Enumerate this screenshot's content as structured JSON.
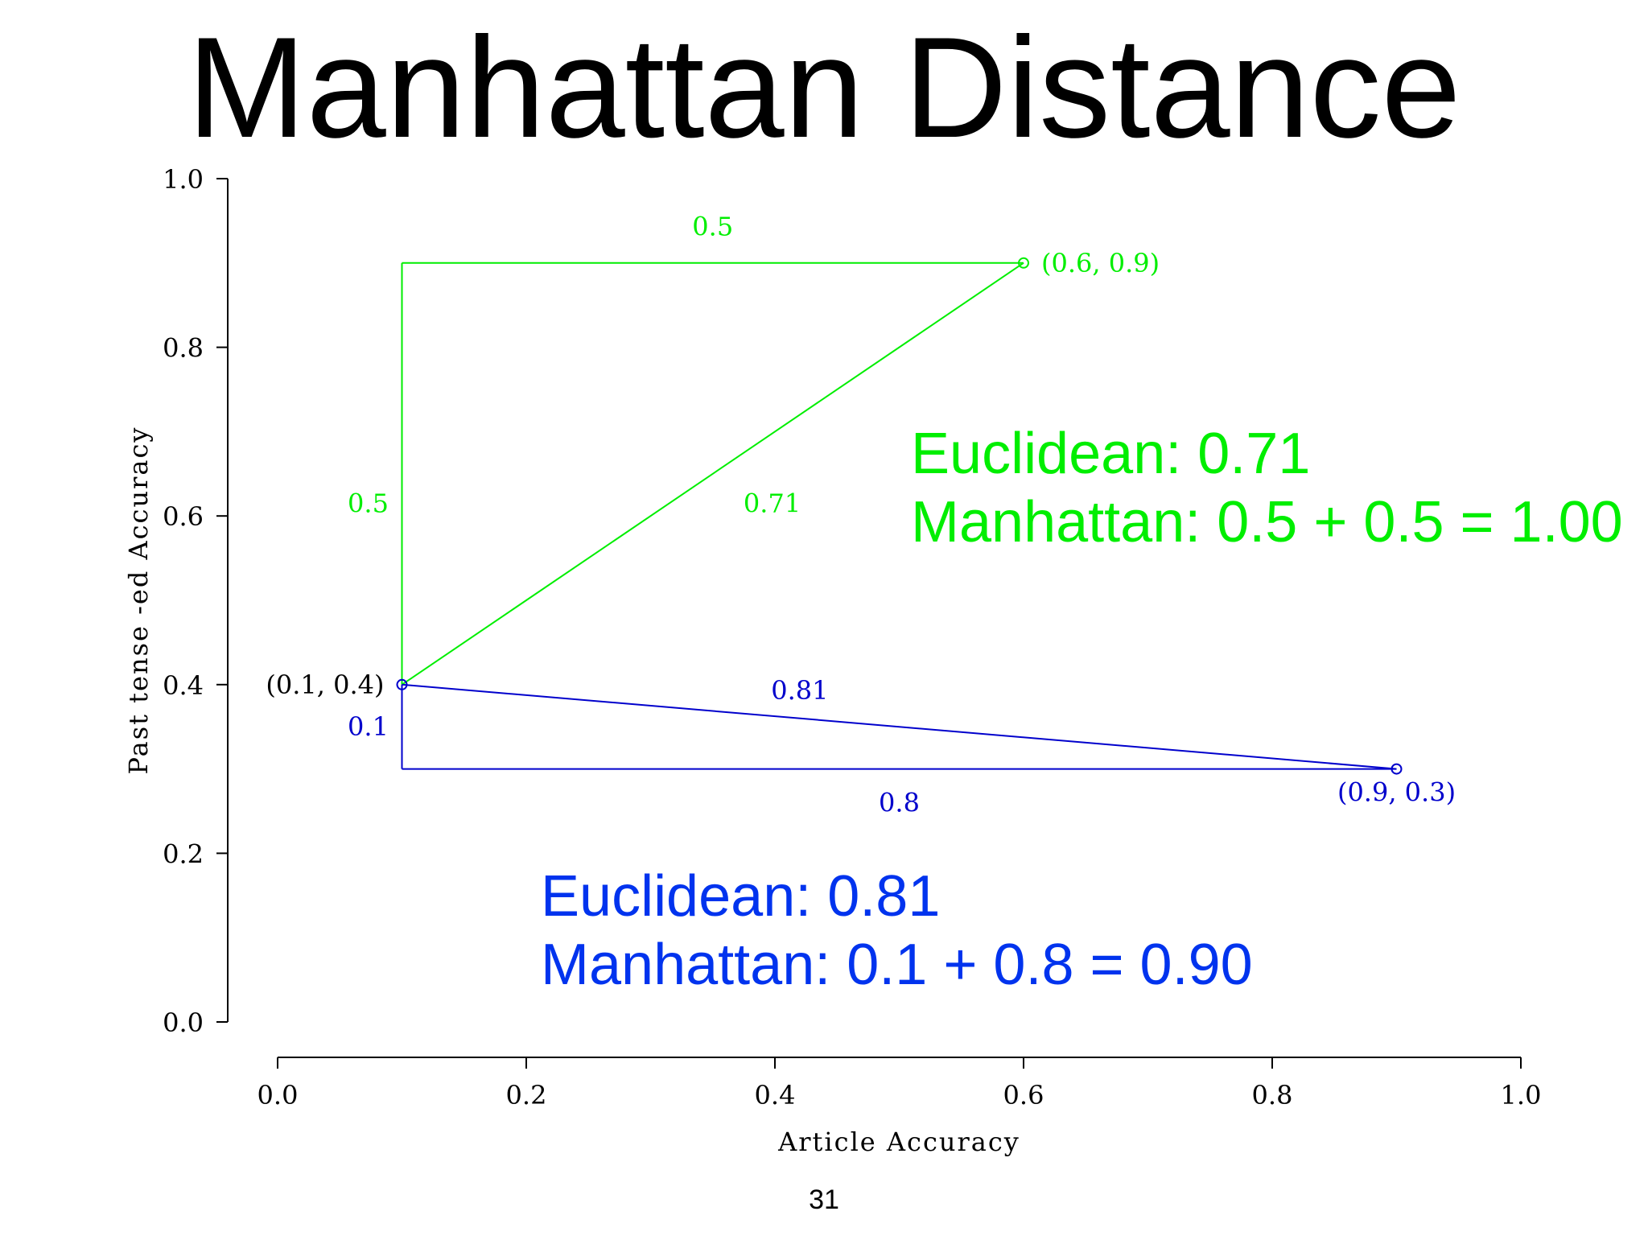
{
  "slide": {
    "title": "Manhattan Distance",
    "page_number": "31",
    "notes": {
      "green": {
        "euclidean": "Euclidean: 0.71",
        "manhattan": "Manhattan: 0.5 + 0.5 = 1.00",
        "color": "#00ee00"
      },
      "blue": {
        "euclidean": "Euclidean: 0.81",
        "manhattan": "Manhattan: 0.1 + 0.8 = 0.90",
        "color": "#0033ee"
      }
    }
  },
  "chart_data": {
    "type": "scatter",
    "xlabel": "Article Accuracy",
    "ylabel": "Past tense -ed Accuracy",
    "xlim": [
      0,
      1
    ],
    "ylim": [
      0,
      1
    ],
    "xticks": [
      "0.0",
      "0.2",
      "0.4",
      "0.6",
      "0.8",
      "1.0"
    ],
    "yticks": [
      "0.0",
      "0.2",
      "0.4",
      "0.6",
      "0.8",
      "1.0"
    ],
    "grid": false,
    "points": [
      {
        "x": 0.1,
        "y": 0.4,
        "label": "(0.1, 0.4)",
        "color": "#000000"
      },
      {
        "x": 0.6,
        "y": 0.9,
        "label": "(0.6, 0.9)",
        "color": "#00ee00"
      },
      {
        "x": 0.9,
        "y": 0.3,
        "label": "(0.9, 0.3)",
        "color": "#0000cc"
      }
    ],
    "segments": [
      {
        "from": [
          0.1,
          0.4
        ],
        "to": [
          0.1,
          0.9
        ],
        "label": "0.5",
        "color": "#00ee00"
      },
      {
        "from": [
          0.1,
          0.9
        ],
        "to": [
          0.6,
          0.9
        ],
        "label": "0.5",
        "color": "#00ee00"
      },
      {
        "from": [
          0.1,
          0.4
        ],
        "to": [
          0.6,
          0.9
        ],
        "label": "0.71",
        "color": "#00ee00"
      },
      {
        "from": [
          0.1,
          0.4
        ],
        "to": [
          0.1,
          0.3
        ],
        "label": "0.1",
        "color": "#0000cc"
      },
      {
        "from": [
          0.1,
          0.3
        ],
        "to": [
          0.9,
          0.3
        ],
        "label": "0.8",
        "color": "#0000cc"
      },
      {
        "from": [
          0.1,
          0.4
        ],
        "to": [
          0.9,
          0.3
        ],
        "label": "0.81",
        "color": "#0000cc"
      }
    ]
  }
}
